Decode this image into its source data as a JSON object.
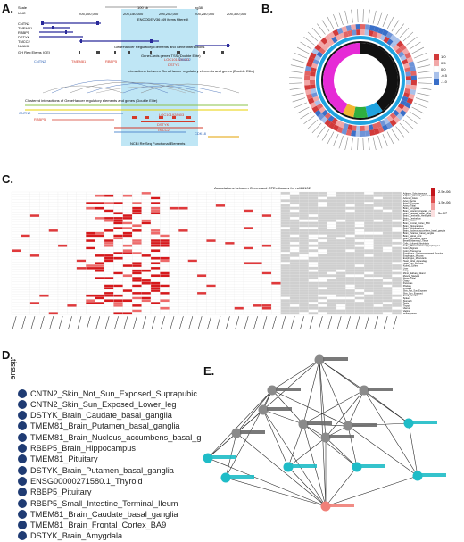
{
  "figure": {
    "panels": {
      "a": {
        "letter": "A."
      },
      "b": {
        "letter": "B."
      },
      "c": {
        "letter": "C.",
        "title": "Associations between Genes and GTEx tissues for rs466102"
      },
      "d": {
        "letter": "D."
      },
      "e": {
        "letter": "E."
      }
    }
  },
  "panel_a": {
    "scale_label": "Scale",
    "chrom_label": "UNC",
    "scale_value": "100 kb",
    "assembly": "hg38",
    "coords": [
      "205,100,000",
      "205,150,000",
      "205,200,000",
      "205,250,000",
      "205,300,000"
    ],
    "encode_label": "ENCODE V36 (49 items filtered)",
    "gene_tracks": [
      "CNTN2",
      "TMEM81",
      "RBBP5",
      "DSTYK",
      "TMCC2",
      "NUAK2"
    ],
    "ghreg_label": "GH Reg Elems (GE)",
    "genehancer_title": "GeneHancer Regulatory Elements and Gene Interactions",
    "genecards_title": "GeneCards genes TSS (Double Elite)",
    "interactions_title": "Interactions between GeneHancer regulatory elements and genes (Double Elite)",
    "clustered_title": "Clustered interactions of GeneHancer regulatory elements and genes (Double Elite)",
    "ncbi_title": "NCBI RefSeq Functional Elements",
    "red_labels": [
      "TMEM81",
      "RBBP5",
      "LOC101928403",
      "DSTYK",
      "TMCC2"
    ],
    "blue_labels": [
      "CNTN2",
      "TMCC2",
      "CDK18"
    ]
  },
  "panel_b": {
    "legend_values": [
      "1.0",
      "0.5",
      "0.0",
      "-0.5",
      "-1.0"
    ]
  },
  "panel_c": {
    "title": "Associations between Genes and GTEx tissues for rs466102",
    "tissues": [
      "Adipose_Subcutaneous",
      "Adipose_Visceral_Omentum",
      "Adrenal_Gland",
      "Artery_Aorta",
      "Artery_Coronary",
      "Artery_Tibial",
      "Brain_Amygdala",
      "Brain_Anterior_cingulate_cortex",
      "Brain_Caudate_basal_ganglia",
      "Brain_Cerebellar_Hemisphere",
      "Brain_Cerebellum",
      "Brain_Cortex",
      "Brain_Frontal_Cortex_BA9",
      "Brain_Hippocampus",
      "Brain_Hypothalamus",
      "Brain_Nucleus_accumbens_basal_ganglia",
      "Brain_Putamen_basal_ganglia",
      "Brain_Spinal_cord",
      "Brain_Substantia_nigra",
      "Breast_Mammary_Tissue",
      "Cells_Cultured_fibroblasts",
      "Cells_EBV-transformed_lymphocytes",
      "Colon_Sigmoid",
      "Colon_Transverse",
      "Esophagus_Gastroesophageal_Junction",
      "Esophagus_Mucosa",
      "Esophagus_Muscularis",
      "Heart_Atrial_Appendage",
      "Heart_Left_Ventricle",
      "Kidney_Cortex",
      "Liver",
      "Lung",
      "Minor_Salivary_Gland",
      "Muscle_Skeletal",
      "Nerve_Tibial",
      "Ovary",
      "Pancreas",
      "Pituitary",
      "Prostate",
      "Skin_Not_Sun_Exposed",
      "Skin_Sun_Exposed",
      "Small_Intestine",
      "Spleen",
      "Stomach",
      "Testis",
      "Thyroid",
      "Uterus",
      "Vagina",
      "Whole_Blood"
    ],
    "colorbar_ticks": [
      "2.5e-06",
      "1.5e-06",
      "5e-07"
    ]
  },
  "panel_d": {
    "header": "tissue",
    "items": [
      "CNTN2_Skin_Not_Sun_Exposed_Suprapubic",
      "CNTN2_Skin_Sun_Exposed_Lower_leg",
      "DSTYK_Brain_Caudate_basal_ganglia",
      "TMEM81_Brain_Putamen_basal_ganglia",
      "TMEM81_Brain_Nucleus_accumbens_basal_g",
      "RBBP5_Brain_Hippocampus",
      "TMEM81_Pituitary",
      "DSTYK_Brain_Putamen_basal_ganglia",
      "ENSG00000271580.1_Thyroid",
      "RBBP5_Pituitary",
      "RBBP5_Small_Intestine_Terminal_Ileum",
      "TMEM81_Brain_Caudate_basal_ganglia",
      "TMEM81_Brain_Frontal_Cortex_BA9",
      "DSTYK_Brain_Amygdala"
    ],
    "dot_color": "#1f3b73"
  },
  "panel_e": {
    "colors": {
      "gray": "#8a8a8a",
      "teal": "#1fbcc7",
      "red": "#f08078"
    }
  }
}
